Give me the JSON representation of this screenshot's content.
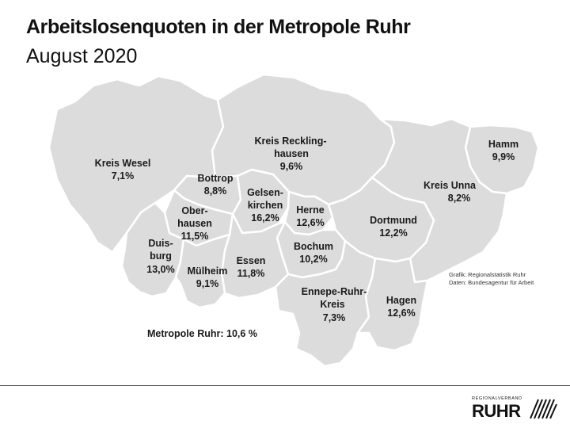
{
  "header": {
    "title": "Arbeitslosenquoten in der Metropole Ruhr",
    "subtitle": "August 2020"
  },
  "regions": [
    {
      "key": "wesel",
      "name": [
        "Kreis Wesel"
      ],
      "value": "7,1%"
    },
    {
      "key": "recklinghausen",
      "name": [
        "Kreis Reckling-",
        "hausen"
      ],
      "value": "9,6%"
    },
    {
      "key": "hamm",
      "name": [
        "Hamm"
      ],
      "value": "9,9%"
    },
    {
      "key": "unna",
      "name": [
        "Kreis Unna"
      ],
      "value": "8,2%"
    },
    {
      "key": "bottrop",
      "name": [
        "Bottrop"
      ],
      "value": "8,8%"
    },
    {
      "key": "gelsenkirchen",
      "name": [
        "Gelsen-",
        "kirchen"
      ],
      "value": "16,2%"
    },
    {
      "key": "oberhausen",
      "name": [
        "Ober-",
        "hausen"
      ],
      "value": "11,5%"
    },
    {
      "key": "herne",
      "name": [
        "Herne"
      ],
      "value": "12,6%"
    },
    {
      "key": "dortmund",
      "name": [
        "Dortmund"
      ],
      "value": "12,2%"
    },
    {
      "key": "duisburg",
      "name": [
        "Duis-",
        "burg"
      ],
      "value": "13,0%"
    },
    {
      "key": "bochum",
      "name": [
        "Bochum"
      ],
      "value": "10,2%"
    },
    {
      "key": "essen",
      "name": [
        "Essen"
      ],
      "value": "11,8%"
    },
    {
      "key": "muelheim",
      "name": [
        "Mülheim"
      ],
      "value": "9,1%"
    },
    {
      "key": "ennepe",
      "name": [
        "Ennepe-Ruhr-",
        "Kreis"
      ],
      "value": "7,3%"
    },
    {
      "key": "hagen",
      "name": [
        "Hagen"
      ],
      "value": "12,6%"
    }
  ],
  "total": {
    "label": "Metropole Ruhr:",
    "value": "10,6 %"
  },
  "source": [
    "Grafik: Regionalstatistik Ruhr",
    "Daten: Bundesagentur für Arbeit"
  ],
  "logo": {
    "top_text": "REGIONALVERBAND",
    "word": "RUHR"
  },
  "colors": {
    "region_fill": "#dcdcdc",
    "border": "#ffffff",
    "text": "#1a1a1a"
  }
}
